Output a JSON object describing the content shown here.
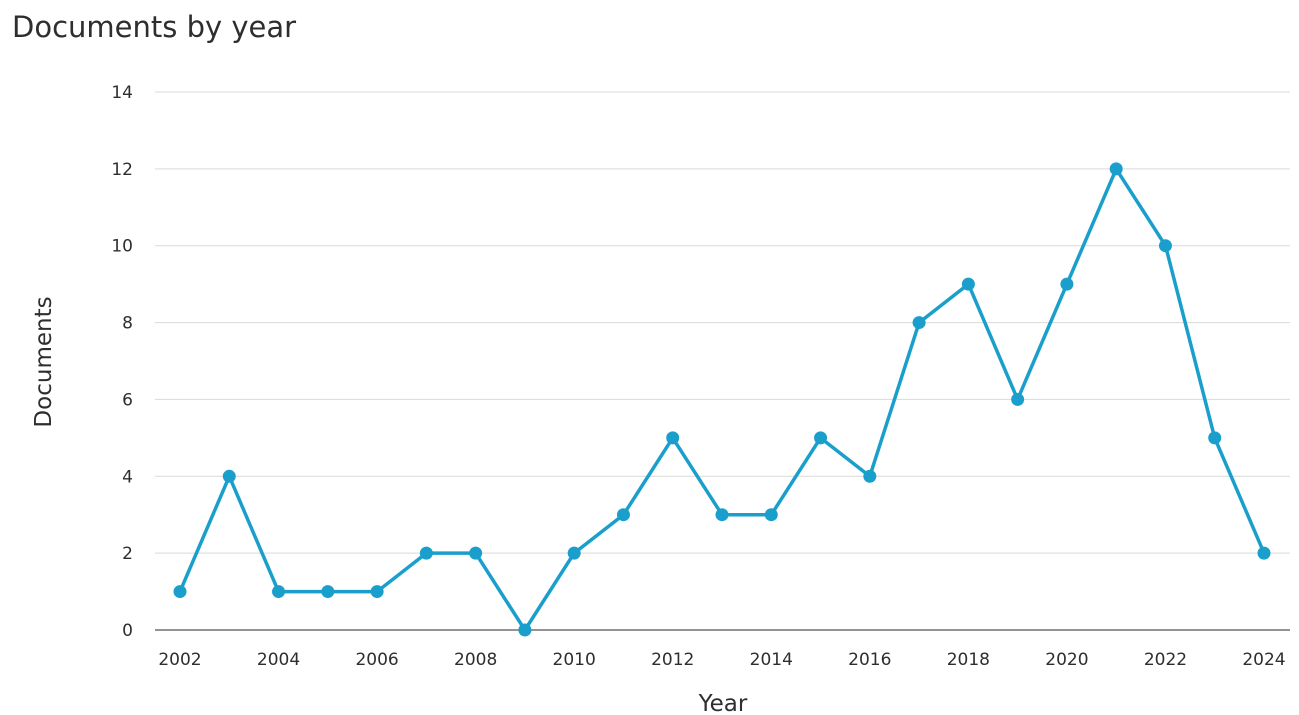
{
  "chart_data": {
    "type": "line",
    "title": "Documents by year",
    "xlabel": "Year",
    "ylabel": "Documents",
    "x": [
      2002,
      2003,
      2004,
      2005,
      2006,
      2007,
      2008,
      2009,
      2010,
      2011,
      2012,
      2013,
      2014,
      2015,
      2016,
      2017,
      2018,
      2019,
      2020,
      2021,
      2022,
      2023,
      2024
    ],
    "series": [
      {
        "values": [
          1,
          4,
          1,
          1,
          1,
          2,
          2,
          0,
          2,
          3,
          5,
          3,
          3,
          5,
          4,
          8,
          9,
          6,
          9,
          12,
          10,
          5,
          2
        ]
      }
    ],
    "xticks": [
      "2002",
      "2004",
      "2006",
      "2008",
      "2010",
      "2012",
      "2014",
      "2016",
      "2018",
      "2020",
      "2022",
      "2024"
    ],
    "yticks": [
      "0",
      "2",
      "4",
      "6",
      "8",
      "10",
      "12",
      "14"
    ],
    "xlim": [
      2002,
      2024
    ],
    "ylim": [
      0,
      14
    ],
    "grid": "horizontal",
    "colors": {
      "line": "#1a9fcc",
      "grid": "#d9d9d9",
      "axis": "#555555",
      "text": "#2e2e2e"
    }
  }
}
